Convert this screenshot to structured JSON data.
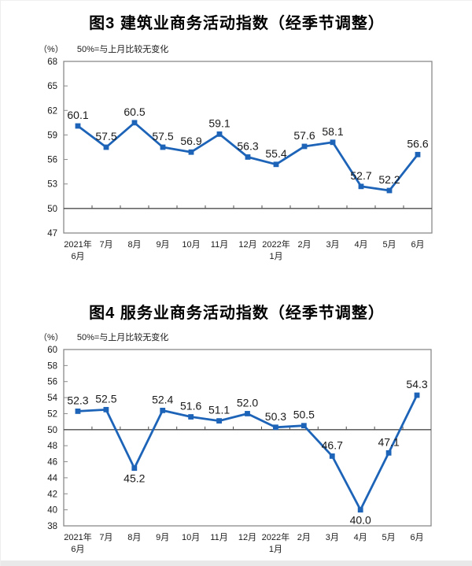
{
  "colors": {
    "line": "#1d64b8",
    "frame": "#8a8a8a",
    "baseline_line": "#4d4d4d",
    "value_label": "#1a1a1a",
    "axis_text": "#1a1a1a",
    "title_text": "#000000",
    "bottom_strip": "#e9e9e9"
  },
  "chart_data": [
    {
      "type": "line",
      "title": "图3 建筑业商务活动指数（经季节调整）",
      "unit_label": "（%）",
      "note": "50%=与上月比较无变化",
      "categories": [
        [
          "2021年",
          "6月"
        ],
        [
          "7月"
        ],
        [
          "8月"
        ],
        [
          "9月"
        ],
        [
          "10月"
        ],
        [
          "11月"
        ],
        [
          "12月"
        ],
        [
          "2022年",
          "1月"
        ],
        [
          "2月"
        ],
        [
          "3月"
        ],
        [
          "4月"
        ],
        [
          "5月"
        ],
        [
          "6月"
        ]
      ],
      "values": [
        60.1,
        57.5,
        60.5,
        57.5,
        56.9,
        59.1,
        56.3,
        55.4,
        57.6,
        58.1,
        52.7,
        52.2,
        56.6
      ],
      "ylim": [
        47,
        68
      ],
      "yticks": [
        68,
        65,
        62,
        59,
        56,
        53,
        50,
        47
      ],
      "baseline": 50,
      "labels_below": [],
      "legend": "none",
      "grid": "off"
    },
    {
      "type": "line",
      "title": "图4 服务业商务活动指数（经季节调整）",
      "unit_label": "（%）",
      "note": "50%=与上月比较无变化",
      "categories": [
        [
          "2021年",
          "6月"
        ],
        [
          "7月"
        ],
        [
          "8月"
        ],
        [
          "9月"
        ],
        [
          "10月"
        ],
        [
          "11月"
        ],
        [
          "12月"
        ],
        [
          "2022年",
          "1月"
        ],
        [
          "2月"
        ],
        [
          "3月"
        ],
        [
          "4月"
        ],
        [
          "5月"
        ],
        [
          "6月"
        ]
      ],
      "values": [
        52.3,
        52.5,
        45.2,
        52.4,
        51.6,
        51.1,
        52.0,
        50.3,
        50.5,
        46.7,
        40.0,
        47.1,
        54.3
      ],
      "ylim": [
        38,
        60
      ],
      "yticks": [
        60,
        58,
        56,
        54,
        52,
        50,
        48,
        46,
        44,
        42,
        40,
        38
      ],
      "baseline": 50,
      "labels_below": [
        2,
        10
      ],
      "legend": "none",
      "grid": "off"
    }
  ]
}
